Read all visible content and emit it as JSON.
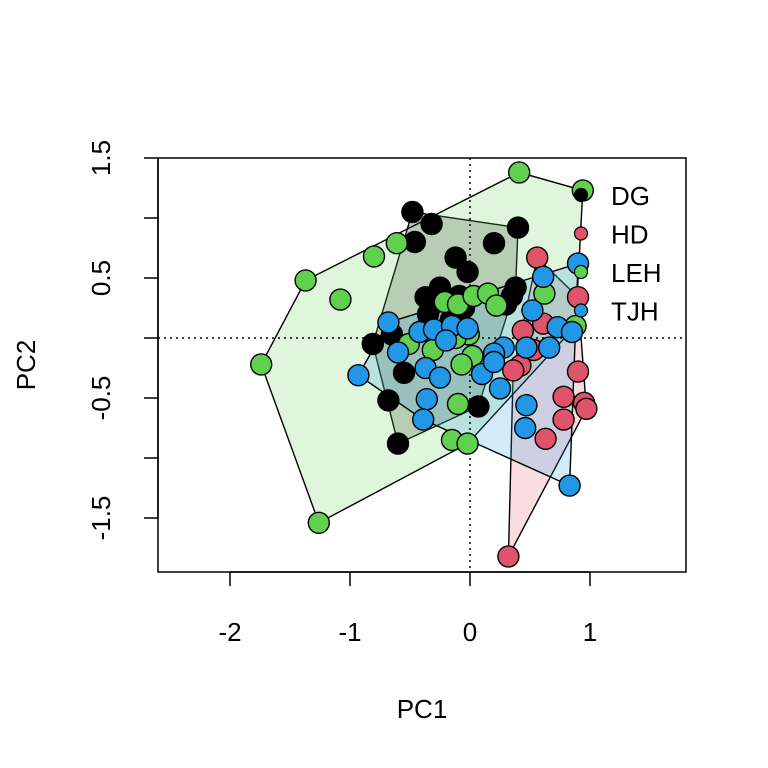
{
  "chart_data": {
    "type": "scatter",
    "title": "",
    "xlabel": "PC1",
    "ylabel": "PC2",
    "xlim": [
      -2.6,
      1.8
    ],
    "ylim": [
      -1.95,
      1.5
    ],
    "xticks": [
      -2,
      -1,
      0,
      1
    ],
    "xtick_labels": [
      "-2",
      "-1",
      "0",
      "1"
    ],
    "yticks": [
      -1.5,
      -0.5,
      0.5,
      1.5
    ],
    "ytick_labels": [
      "-1.5",
      "-0.5",
      "0.5",
      "1.5"
    ],
    "ytick_marks": [
      -1.5,
      -1,
      -0.5,
      0,
      0.5,
      1,
      1.5
    ],
    "reference_lines": {
      "x": 0,
      "y": 0,
      "style": "dotted"
    },
    "grid": false,
    "legend_position": "top-right",
    "hulls": true,
    "series": [
      {
        "name": "DG",
        "color": "#000000",
        "hull_fill": "#1a1a1a",
        "points": [
          [
            -0.48,
            1.05
          ],
          [
            -0.32,
            0.95
          ],
          [
            -0.46,
            0.8
          ],
          [
            -0.12,
            0.67
          ],
          [
            0.2,
            0.79
          ],
          [
            0.4,
            0.92
          ],
          [
            -0.25,
            0.42
          ],
          [
            -0.02,
            0.55
          ],
          [
            0.38,
            0.42
          ],
          [
            0.35,
            0.35
          ],
          [
            -0.37,
            0.34
          ],
          [
            -0.31,
            0.28
          ],
          [
            -0.09,
            0.35
          ],
          [
            -0.35,
            0.2
          ],
          [
            -0.36,
            0.09
          ],
          [
            -0.65,
            0.03
          ],
          [
            -0.81,
            -0.05
          ],
          [
            -0.55,
            -0.29
          ],
          [
            -0.68,
            -0.52
          ],
          [
            -0.6,
            -0.88
          ],
          [
            0.07,
            -0.57
          ],
          [
            -0.16,
            0.15
          ],
          [
            0.3,
            0.28
          ],
          [
            -0.05,
            0.25
          ]
        ]
      },
      {
        "name": "HD",
        "color": "#DF536B",
        "hull_fill": "#DF536B",
        "points": [
          [
            0.56,
            0.67
          ],
          [
            0.9,
            0.34
          ],
          [
            0.44,
            0.06
          ],
          [
            0.42,
            -0.23
          ],
          [
            0.36,
            -0.27
          ],
          [
            0.9,
            -0.28
          ],
          [
            0.78,
            -0.49
          ],
          [
            0.95,
            -0.54
          ],
          [
            0.97,
            -0.59
          ],
          [
            0.78,
            -0.68
          ],
          [
            0.63,
            -0.84
          ],
          [
            0.32,
            -1.82
          ],
          [
            0.61,
            0.12
          ],
          [
            0.53,
            -0.1
          ]
        ]
      },
      {
        "name": "LEH",
        "color": "#61D04F",
        "hull_fill": "#61D04F",
        "points": [
          [
            0.41,
            1.38
          ],
          [
            0.94,
            1.23
          ],
          [
            -0.61,
            0.79
          ],
          [
            -0.8,
            0.68
          ],
          [
            -1.37,
            0.48
          ],
          [
            -1.08,
            0.32
          ],
          [
            -0.21,
            0.3
          ],
          [
            -0.1,
            0.28
          ],
          [
            0.03,
            0.35
          ],
          [
            0.15,
            0.37
          ],
          [
            0.22,
            0.27
          ],
          [
            0.62,
            0.37
          ],
          [
            0.88,
            0.1
          ],
          [
            -0.51,
            -0.05
          ],
          [
            -0.31,
            -0.1
          ],
          [
            -0.14,
            0.05
          ],
          [
            -0.01,
            0.03
          ],
          [
            0.02,
            -0.15
          ],
          [
            -0.07,
            -0.22
          ],
          [
            -1.74,
            -0.22
          ],
          [
            -0.1,
            -0.55
          ],
          [
            -0.15,
            -0.85
          ],
          [
            -0.02,
            -0.88
          ],
          [
            -1.26,
            -1.54
          ],
          [
            -0.12,
            0.0
          ]
        ]
      },
      {
        "name": "TJH",
        "color": "#2297E6",
        "hull_fill": "#2297E6",
        "points": [
          [
            0.61,
            0.51
          ],
          [
            0.9,
            0.62
          ],
          [
            0.52,
            0.23
          ],
          [
            0.73,
            0.09
          ],
          [
            0.85,
            0.05
          ],
          [
            -0.68,
            0.13
          ],
          [
            -0.42,
            0.05
          ],
          [
            -0.3,
            0.07
          ],
          [
            -0.15,
            0.1
          ],
          [
            -0.02,
            0.08
          ],
          [
            -0.2,
            -0.02
          ],
          [
            0.28,
            -0.08
          ],
          [
            0.47,
            -0.08
          ],
          [
            0.66,
            -0.08
          ],
          [
            0.2,
            -0.13
          ],
          [
            -0.93,
            -0.31
          ],
          [
            -0.37,
            -0.25
          ],
          [
            -0.25,
            -0.33
          ],
          [
            0.1,
            -0.3
          ],
          [
            -0.36,
            -0.51
          ],
          [
            0.25,
            -0.42
          ],
          [
            0.47,
            -0.56
          ],
          [
            0.46,
            -0.75
          ],
          [
            -0.39,
            -0.68
          ],
          [
            0.83,
            -1.23
          ],
          [
            -0.6,
            -0.12
          ],
          [
            0.2,
            -0.2
          ]
        ]
      }
    ]
  }
}
